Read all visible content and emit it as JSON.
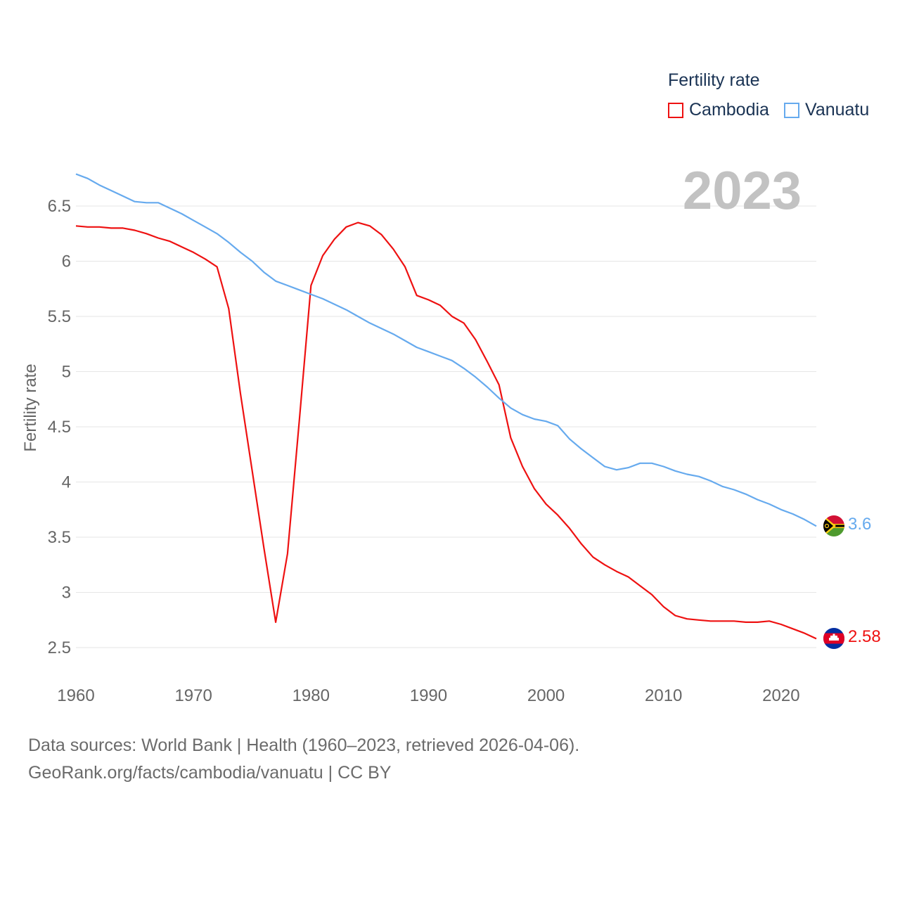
{
  "chart_data": {
    "type": "line",
    "title": "Fertility rate",
    "ylabel": "Fertility rate",
    "xlabel": "",
    "xlim": [
      1960,
      2023
    ],
    "ylim": [
      2.3,
      6.9
    ],
    "x_ticks": [
      1960,
      1970,
      1980,
      1990,
      2000,
      2010,
      2020
    ],
    "y_ticks": [
      2.5,
      3,
      3.5,
      4,
      4.5,
      5,
      5.5,
      6,
      6.5
    ],
    "y_tick_labels": [
      "2.5",
      "3",
      "3.5",
      "4",
      "4.5",
      "5",
      "5.5",
      "6",
      "6.5"
    ],
    "x": [
      1960,
      1961,
      1962,
      1963,
      1964,
      1965,
      1966,
      1967,
      1968,
      1969,
      1970,
      1971,
      1972,
      1973,
      1974,
      1975,
      1976,
      1977,
      1978,
      1979,
      1980,
      1981,
      1982,
      1983,
      1984,
      1985,
      1986,
      1987,
      1988,
      1989,
      1990,
      1991,
      1992,
      1993,
      1994,
      1995,
      1996,
      1997,
      1998,
      1999,
      2000,
      2001,
      2002,
      2003,
      2004,
      2005,
      2006,
      2007,
      2008,
      2009,
      2010,
      2011,
      2012,
      2013,
      2014,
      2015,
      2016,
      2017,
      2018,
      2019,
      2020,
      2021,
      2022,
      2023
    ],
    "series": [
      {
        "name": "Cambodia",
        "color": "#ee1111",
        "end_value": 2.58,
        "end_label": "2.58",
        "values": [
          6.32,
          6.31,
          6.31,
          6.3,
          6.3,
          6.28,
          6.25,
          6.21,
          6.18,
          6.13,
          6.08,
          6.02,
          5.95,
          5.57,
          4.8,
          4.1,
          3.4,
          2.73,
          3.35,
          4.55,
          5.78,
          6.05,
          6.2,
          6.31,
          6.35,
          6.32,
          6.24,
          6.11,
          5.95,
          5.69,
          5.65,
          5.6,
          5.5,
          5.44,
          5.29,
          5.09,
          4.88,
          4.4,
          4.14,
          3.94,
          3.8,
          3.7,
          3.58,
          3.44,
          3.32,
          3.25,
          3.19,
          3.14,
          3.06,
          2.98,
          2.87,
          2.79,
          2.76,
          2.75,
          2.74,
          2.74,
          2.74,
          2.73,
          2.73,
          2.74,
          2.71,
          2.67,
          2.63,
          2.58
        ]
      },
      {
        "name": "Vanuatu",
        "color": "#66aaee",
        "end_value": 3.6,
        "end_label": "3.6",
        "values": [
          6.79,
          6.75,
          6.69,
          6.64,
          6.59,
          6.54,
          6.53,
          6.53,
          6.48,
          6.43,
          6.37,
          6.31,
          6.25,
          6.17,
          6.08,
          6.0,
          5.9,
          5.82,
          5.78,
          5.74,
          5.7,
          5.66,
          5.61,
          5.56,
          5.5,
          5.44,
          5.39,
          5.34,
          5.28,
          5.22,
          5.18,
          5.14,
          5.1,
          5.03,
          4.95,
          4.86,
          4.76,
          4.67,
          4.61,
          4.57,
          4.55,
          4.51,
          4.39,
          4.3,
          4.22,
          4.14,
          4.11,
          4.13,
          4.17,
          4.17,
          4.14,
          4.1,
          4.07,
          4.05,
          4.01,
          3.96,
          3.93,
          3.89,
          3.84,
          3.8,
          3.75,
          3.71,
          3.66,
          3.6
        ]
      }
    ]
  },
  "legend": {
    "title": "Fertility rate",
    "items": [
      {
        "label": "Cambodia",
        "color": "#ee1111"
      },
      {
        "label": "Vanuatu",
        "color": "#66aaee"
      }
    ]
  },
  "year_label": "2023",
  "footer": {
    "line1": "Data sources: World Bank | Health (1960–2023, retrieved 2026-04-06).",
    "line2": "GeoRank.org/facts/cambodia/vanuatu | CC BY"
  },
  "flags": [
    {
      "country": "Vanuatu",
      "icon": "vanuatu-flag-icon"
    },
    {
      "country": "Cambodia",
      "icon": "cambodia-flag-icon"
    }
  ]
}
